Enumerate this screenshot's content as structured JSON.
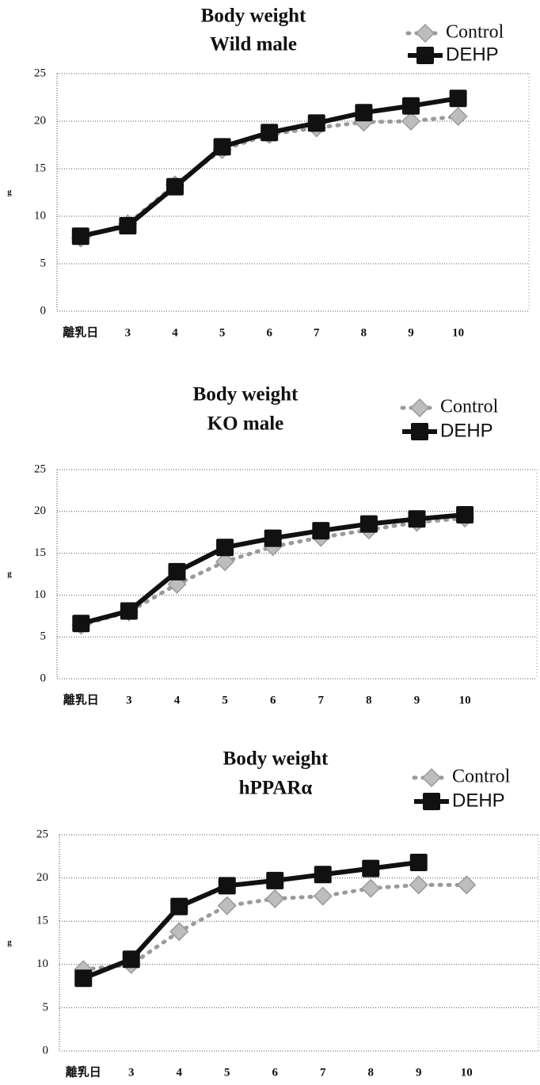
{
  "chart_data": [
    {
      "type": "line",
      "title": "Body weight",
      "subtitle": "Wild male",
      "y_label": "g",
      "categories": [
        "離乳日",
        "3",
        "4",
        "5",
        "6",
        "7",
        "8",
        "9",
        "10",
        null
      ],
      "series": [
        {
          "name": "Control",
          "color": "#9a9a9a",
          "values": [
            7.7,
            9.2,
            13.3,
            17.0,
            18.6,
            19.3,
            19.9,
            20.0,
            20.5,
            null
          ]
        },
        {
          "name": "DEHP",
          "color": "#111111",
          "values": [
            7.9,
            9.0,
            13.1,
            17.3,
            18.8,
            19.8,
            20.9,
            21.6,
            22.4,
            null
          ]
        }
      ],
      "ylim": [
        0,
        25
      ],
      "yticks": [
        0,
        5,
        10,
        15,
        20,
        25
      ],
      "grid": true,
      "legend": "top right"
    },
    {
      "type": "line",
      "title": "Body weight",
      "subtitle": "KO male",
      "y_label": "g",
      "categories": [
        "離乳日",
        "3",
        "4",
        "5",
        "6",
        "7",
        "8",
        "9",
        "10",
        null
      ],
      "series": [
        {
          "name": "Control",
          "color": "#9a9a9a",
          "values": [
            6.4,
            8.0,
            11.3,
            14.0,
            15.8,
            16.9,
            17.8,
            18.7,
            19.2,
            null
          ]
        },
        {
          "name": "DEHP",
          "color": "#111111",
          "values": [
            6.6,
            8.1,
            12.8,
            15.7,
            16.8,
            17.7,
            18.5,
            19.1,
            19.6,
            null
          ]
        }
      ],
      "ylim": [
        0,
        25
      ],
      "yticks": [
        0,
        5,
        10,
        15,
        20,
        25
      ],
      "grid": true,
      "legend": "top right"
    },
    {
      "type": "line",
      "title": "Body weight",
      "subtitle": "hPPARα",
      "y_label": "g",
      "categories": [
        "離乳日",
        "3",
        "4",
        "5",
        "6",
        "7",
        "8",
        "9",
        "10",
        null
      ],
      "series": [
        {
          "name": "Control",
          "color": "#9a9a9a",
          "values": [
            9.4,
            10.0,
            13.8,
            16.8,
            17.6,
            17.9,
            18.8,
            19.2,
            19.2,
            null
          ]
        },
        {
          "name": "DEHP",
          "color": "#111111",
          "values": [
            8.4,
            10.6,
            16.7,
            19.1,
            19.7,
            20.4,
            21.1,
            21.8,
            null,
            null
          ]
        }
      ],
      "ylim": [
        0,
        25
      ],
      "yticks": [
        0,
        5,
        10,
        15,
        20,
        25
      ],
      "grid": true,
      "legend": "top right"
    }
  ]
}
